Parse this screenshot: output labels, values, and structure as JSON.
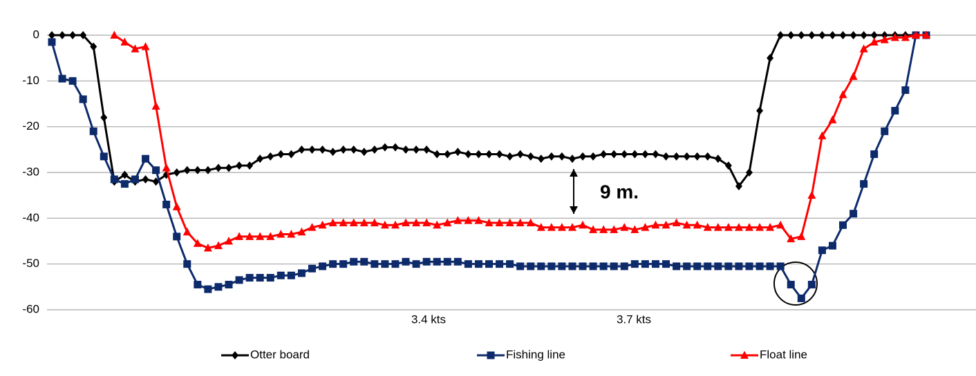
{
  "chart_data": {
    "type": "line",
    "categories": [
      null,
      null,
      null,
      null,
      null,
      null,
      null,
      null,
      null,
      null,
      null,
      null,
      null,
      null,
      null,
      null,
      null,
      null,
      null,
      null,
      null,
      null,
      null,
      null,
      null,
      null,
      null,
      null,
      null,
      null,
      null,
      null,
      null,
      null,
      null,
      null,
      null,
      null,
      null,
      null,
      null,
      null,
      null,
      null,
      null,
      null,
      null,
      null,
      null,
      null,
      null,
      null,
      null,
      null,
      null,
      null,
      null,
      null,
      null,
      null,
      null,
      null,
      null,
      null,
      null,
      null,
      null,
      null,
      null,
      null,
      null,
      null,
      null,
      null,
      null,
      null,
      null,
      null,
      null,
      null,
      null,
      null,
      null,
      null,
      null
    ],
    "series": [
      {
        "name": "Otter board",
        "color": "#000000",
        "marker": "diamond",
        "values": [
          0,
          0,
          0,
          0,
          -2.5,
          -18,
          -32,
          -30.5,
          -32,
          -31.5,
          -32,
          -30.5,
          -30,
          -29.5,
          -29.5,
          -29.5,
          -29,
          -29,
          -28.5,
          -28.5,
          -27,
          -26.5,
          -26,
          -26,
          -25,
          -25,
          -25,
          -25.5,
          -25,
          -25,
          -25.5,
          -25,
          -24.5,
          -24.5,
          -25,
          -25,
          -25,
          -26,
          -26,
          -25.5,
          -26,
          -26,
          -26,
          -26,
          -26.5,
          -26,
          -26.5,
          -27,
          -26.5,
          -26.5,
          -27,
          -26.5,
          -26.5,
          -26,
          -26,
          -26,
          -26,
          -26,
          -26,
          -26.5,
          -26.5,
          -26.5,
          -26.5,
          -26.5,
          -27,
          -28.5,
          -33,
          -30,
          -16.5,
          -5,
          0,
          0,
          0,
          0,
          0,
          0,
          0,
          0,
          0,
          0,
          0,
          0,
          0,
          0,
          0
        ]
      },
      {
        "name": "Fishing line",
        "color": "#0d2a6b",
        "marker": "square",
        "values": [
          -1.5,
          -9.5,
          -10,
          -14,
          -21,
          -26.5,
          -31.5,
          -32.5,
          -31.5,
          -27,
          -29.5,
          -37,
          -44,
          -50,
          -54.5,
          -55.5,
          -55,
          -54.5,
          -53.5,
          -53,
          -53,
          -53,
          -52.5,
          -52.5,
          -52,
          -51,
          -50.5,
          -50,
          -50,
          -49.5,
          -49.5,
          -50,
          -50,
          -50,
          -49.5,
          -50,
          -49.5,
          -49.5,
          -49.5,
          -49.5,
          -50,
          -50,
          -50,
          -50,
          -50,
          -50.5,
          -50.5,
          -50.5,
          -50.5,
          -50.5,
          -50.5,
          -50.5,
          -50.5,
          -50.5,
          -50.5,
          -50.5,
          -50,
          -50,
          -50,
          -50,
          -50.5,
          -50.5,
          -50.5,
          -50.5,
          -50.5,
          -50.5,
          -50.5,
          -50.5,
          -50.5,
          -50.5,
          -50.5,
          -54.5,
          -57.5,
          -54.5,
          -47,
          -46,
          -41.5,
          -39,
          -32.5,
          -26,
          -21,
          -16.5,
          -12,
          0,
          0
        ]
      },
      {
        "name": "Float line",
        "color": "#ff0000",
        "marker": "triangle",
        "values": [
          null,
          null,
          null,
          null,
          null,
          null,
          0,
          -1.5,
          -3,
          -2.5,
          -15.5,
          -29,
          -37.5,
          -43,
          -45.5,
          -46.5,
          -46,
          -45,
          -44,
          -44,
          -44,
          -44,
          -43.5,
          -43.5,
          -43,
          -42,
          -41.5,
          -41,
          -41,
          -41,
          -41,
          -41,
          -41.5,
          -41.5,
          -41,
          -41,
          -41,
          -41.5,
          -41,
          -40.5,
          -40.5,
          -40.5,
          -41,
          -41,
          -41,
          -41,
          -41,
          -42,
          -42,
          -42,
          -42,
          -41.5,
          -42.5,
          -42.5,
          -42.5,
          -42,
          -42.5,
          -42,
          -41.5,
          -41.5,
          -41,
          -41.5,
          -41.5,
          -42,
          -42,
          -42,
          -42,
          -42,
          -42,
          -42,
          -41.5,
          -44.5,
          -44,
          -35,
          -22,
          -18.5,
          -13,
          -9,
          -3,
          -1.5,
          -1,
          -0.5,
          -0.5,
          0,
          0
        ]
      }
    ],
    "ylim": [
      -60,
      0
    ],
    "yticks": [
      0,
      -10,
      -20,
      -30,
      -40,
      -50,
      -60
    ],
    "grid": true,
    "annotations": [
      "3.4 kts",
      "3.7 kts",
      "9 m."
    ],
    "legend": "bottom"
  }
}
